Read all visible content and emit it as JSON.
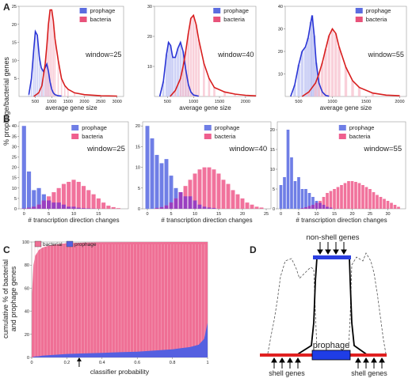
{
  "panels": {
    "A": "A",
    "B": "B",
    "C": "C",
    "D": "D"
  },
  "row_a": {
    "ylabel": "% prophage/bacterial genes",
    "xlabel": "average gene size",
    "legend": [
      "prophage",
      "bacteria"
    ],
    "colors": {
      "prophage": "#5b6ce0",
      "bacteria": "#e8527a",
      "prophage_line": "#2a35d6",
      "bacteria_line": "#d81e1e"
    }
  },
  "row_b": {
    "xlabel": "# transcription direction changes",
    "legend": [
      "prophage",
      "bacteria"
    ]
  },
  "panel_c": {
    "ylabel": "cumulative % of bacterial and prophage genes",
    "xlabel": "classifier probability",
    "legend": [
      "bacterial",
      "prophage"
    ]
  },
  "panel_d": {
    "top_label": "non-shell genes",
    "center_label": "prophage",
    "left_label": "shell genes",
    "right_label": "shell genes"
  },
  "chart_data": [
    {
      "id": "A1",
      "type": "line",
      "window_label": "window=25",
      "xlim": [
        0,
        3200
      ],
      "ylim": [
        0,
        25
      ],
      "xticks": [
        500,
        1000,
        1500,
        2000,
        2500,
        3000
      ],
      "yticks": [
        5,
        10,
        15,
        20,
        25
      ],
      "series": [
        {
          "name": "prophage",
          "x": [
            300,
            380,
            450,
            500,
            560,
            620,
            680,
            740,
            800,
            850,
            900,
            950,
            1000,
            1050,
            1100,
            1200,
            1300
          ],
          "y": [
            0.5,
            5,
            13,
            18,
            17,
            11,
            8,
            7,
            8,
            9,
            7,
            4,
            2,
            1,
            0.5,
            0.2,
            0.1
          ]
        },
        {
          "name": "bacteria",
          "x": [
            450,
            600,
            700,
            800,
            850,
            900,
            950,
            1000,
            1050,
            1100,
            1200,
            1300,
            1400,
            1500,
            1700,
            2000,
            2500,
            3000
          ],
          "y": [
            0,
            1,
            3,
            9,
            14,
            20,
            24,
            24,
            21,
            16,
            10,
            5,
            3,
            2,
            1,
            0.5,
            0.2,
            0.1
          ]
        }
      ]
    },
    {
      "id": "A2",
      "type": "line",
      "window_label": "window=40",
      "xlim": [
        250,
        2200
      ],
      "ylim": [
        0,
        30
      ],
      "xticks": [
        500,
        1000,
        1500,
        2000
      ],
      "yticks": [
        10,
        20,
        30
      ],
      "series": [
        {
          "name": "prophage",
          "x": [
            350,
            420,
            480,
            520,
            560,
            600,
            650,
            700,
            750,
            800,
            850,
            900,
            950,
            1000,
            1100
          ],
          "y": [
            0,
            5,
            14,
            18,
            17,
            13,
            13,
            16,
            18,
            15,
            9,
            4,
            1.5,
            0.5,
            0.1
          ]
        },
        {
          "name": "bacteria",
          "x": [
            550,
            650,
            750,
            800,
            850,
            900,
            950,
            1000,
            1050,
            1100,
            1200,
            1300,
            1400,
            1600,
            1800,
            2000,
            2200
          ],
          "y": [
            0,
            2,
            6,
            10,
            15,
            21,
            26,
            27,
            24,
            19,
            11,
            6,
            3,
            1.5,
            0.8,
            0.4,
            0.2
          ]
        }
      ]
    },
    {
      "id": "A3",
      "type": "line",
      "window_label": "window=55",
      "xlim": [
        300,
        2100
      ],
      "ylim": [
        0,
        40
      ],
      "xticks": [
        500,
        1000,
        1500,
        2000
      ],
      "yticks": [
        10,
        20,
        30,
        40
      ],
      "series": [
        {
          "name": "prophage",
          "x": [
            380,
            440,
            500,
            550,
            600,
            640,
            680,
            700,
            730,
            760,
            800,
            850,
            900,
            950
          ],
          "y": [
            0,
            5,
            14,
            20,
            22,
            26,
            33,
            36,
            27,
            15,
            6,
            2,
            0.5,
            0.1
          ]
        },
        {
          "name": "bacteria",
          "x": [
            550,
            650,
            750,
            800,
            850,
            900,
            950,
            1000,
            1050,
            1100,
            1200,
            1300,
            1400,
            1600,
            1800,
            2000
          ],
          "y": [
            0,
            2,
            6,
            10,
            15,
            21,
            27,
            30,
            28,
            22,
            13,
            7,
            4,
            1.5,
            0.6,
            0.3
          ]
        }
      ]
    },
    {
      "id": "B1",
      "type": "bar",
      "window_label": "window=25",
      "xlim": [
        -1,
        21
      ],
      "ylim": [
        0,
        42
      ],
      "xticks": [
        0,
        5,
        10,
        15
      ],
      "yticks": [
        0,
        5,
        10,
        15,
        20,
        25,
        30,
        35,
        40
      ],
      "x": [
        0,
        1,
        2,
        3,
        4,
        5,
        6,
        7,
        8,
        9,
        10,
        11,
        12,
        13,
        14,
        15,
        16,
        17,
        18,
        19
      ],
      "series": [
        {
          "name": "prophage",
          "values": [
            40,
            18,
            9,
            10,
            7,
            4,
            3,
            3,
            2,
            1,
            1,
            0.5,
            0.3,
            0.2,
            0.1,
            0,
            0,
            0,
            0,
            0
          ]
        },
        {
          "name": "bacteria",
          "values": [
            0.2,
            0.5,
            1,
            2,
            4,
            6,
            8,
            10,
            12,
            13,
            14,
            13,
            11,
            9,
            7,
            5,
            3,
            1.5,
            0.8,
            0.3
          ]
        }
      ]
    },
    {
      "id": "B2",
      "type": "bar",
      "window_label": "window=40",
      "xlim": [
        -1,
        26
      ],
      "ylim": [
        0,
        21
      ],
      "xticks": [
        0,
        5,
        10,
        15,
        20,
        25
      ],
      "yticks": [
        0,
        5,
        10,
        15,
        20
      ],
      "x": [
        0,
        1,
        2,
        3,
        4,
        5,
        6,
        7,
        8,
        9,
        10,
        11,
        12,
        13,
        14,
        15,
        16,
        17,
        18,
        19,
        20,
        21,
        22,
        23,
        24
      ],
      "series": [
        {
          "name": "prophage",
          "values": [
            20,
            17,
            13,
            11,
            12,
            8,
            5,
            4,
            3,
            3,
            2,
            1,
            0.5,
            0.3,
            0.2,
            0,
            0,
            0,
            0,
            0,
            0,
            0,
            0,
            0,
            0
          ]
        },
        {
          "name": "bacteria",
          "values": [
            0,
            0,
            0.2,
            0.4,
            0.8,
            1.5,
            2.5,
            4,
            5.5,
            7,
            8.5,
            9.5,
            10,
            10,
            9.5,
            8.5,
            7,
            6,
            4.5,
            3.5,
            2.5,
            1.5,
            1,
            0.5,
            0.3
          ]
        }
      ]
    },
    {
      "id": "B3",
      "type": "bar",
      "window_label": "window=55",
      "xlim": [
        -1,
        35
      ],
      "ylim": [
        0,
        22
      ],
      "xticks": [
        0,
        5,
        10,
        15,
        20,
        25,
        30
      ],
      "yticks": [
        0,
        5,
        10,
        15,
        20
      ],
      "x": [
        0,
        1,
        2,
        3,
        4,
        5,
        6,
        7,
        8,
        9,
        10,
        11,
        12,
        13,
        14,
        15,
        16,
        17,
        18,
        19,
        20,
        21,
        22,
        23,
        24,
        25,
        26,
        27,
        28,
        29,
        30,
        31,
        32,
        33
      ],
      "series": [
        {
          "name": "prophage",
          "values": [
            6,
            8,
            20,
            13,
            7,
            8,
            5,
            5,
            4,
            3,
            2,
            1.5,
            1,
            0.5,
            0.3,
            0,
            0,
            0,
            0,
            0,
            0,
            0,
            0,
            0,
            0,
            0,
            0,
            0,
            0,
            0,
            0,
            0,
            0,
            0
          ]
        },
        {
          "name": "bacteria",
          "values": [
            0,
            0,
            0,
            0,
            0,
            0,
            0.2,
            0.4,
            0.7,
            1,
            1.5,
            2,
            3,
            4,
            4.5,
            5,
            5.5,
            6,
            6.5,
            7,
            7,
            6.8,
            6.5,
            6,
            5.5,
            5,
            4.2,
            3.5,
            3,
            2.5,
            2,
            1.5,
            1,
            0.5
          ]
        }
      ]
    },
    {
      "id": "C",
      "type": "area",
      "xlim": [
        0,
        1
      ],
      "ylim": [
        0,
        100
      ],
      "xticks": [
        0,
        0.2,
        0.4,
        0.6,
        0.8,
        1
      ],
      "yticks": [
        0,
        20,
        40,
        60,
        80,
        100
      ],
      "x": [
        0,
        0.002,
        0.01,
        0.02,
        0.04,
        0.06,
        0.1,
        0.15,
        0.2,
        0.3,
        0.4,
        0.5,
        0.6,
        0.7,
        0.8,
        0.85,
        0.9,
        0.95,
        0.98,
        1
      ],
      "series": [
        {
          "name": "bacterial",
          "values": [
            0,
            55,
            80,
            88,
            93,
            95,
            97,
            98,
            99,
            99.5,
            99.7,
            99.8,
            99.9,
            99.95,
            100,
            100,
            100,
            100,
            100,
            100
          ]
        },
        {
          "name": "prophage",
          "values": [
            0,
            0,
            0.5,
            0.8,
            1,
            1.5,
            2,
            2.5,
            3,
            3.5,
            4,
            4.5,
            5,
            6,
            7,
            8,
            9,
            11,
            16,
            30
          ]
        }
      ],
      "marker_x": 0.27
    }
  ]
}
